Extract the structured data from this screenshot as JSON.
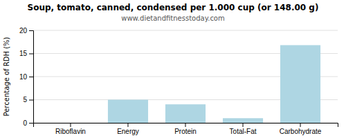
{
  "chart_data": {
    "type": "bar",
    "title": "Soup, tomato, canned, condensed per 1.000 cup (or 148.00 g)",
    "subtitle": "www.dietandfitnesstoday.com",
    "ylabel": "Percentage of RDH (%)",
    "categories": [
      "Riboflavin",
      "Energy",
      "Protein",
      "Total-Fat",
      "Carbohydrate"
    ],
    "values": [
      0.0,
      5.0,
      4.0,
      1.0,
      16.8
    ],
    "color": "#aed6e3",
    "ylim": [
      0,
      20
    ],
    "yticks": [
      0,
      5,
      10,
      15,
      20
    ],
    "grid": true
  }
}
